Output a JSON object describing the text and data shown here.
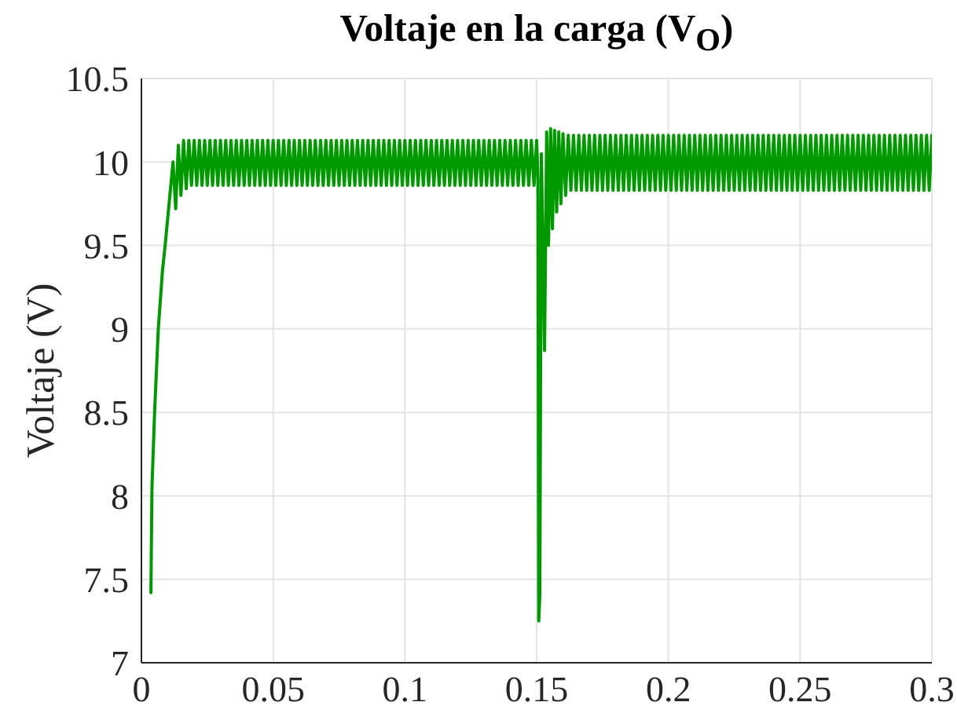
{
  "chart_data": {
    "type": "line",
    "title": "Voltaje en la carga (V$_{O}$)",
    "ylabel": "Voltaje (V)",
    "x": [
      0.0036,
      0.004,
      0.005,
      0.0064,
      0.008,
      0.009,
      0.0105,
      0.012,
      0.013,
      0.014,
      0.015,
      0.016,
      0.017,
      0.018,
      0.019,
      0.02,
      0.021,
      0.022,
      0.023,
      0.024,
      0.025,
      0.026,
      0.027,
      0.028,
      0.029,
      0.03,
      0.031,
      0.032,
      0.033,
      0.034,
      0.035,
      0.036,
      0.037,
      0.038,
      0.039,
      0.04,
      0.041,
      0.042,
      0.043,
      0.044,
      0.045,
      0.046,
      0.047,
      0.048,
      0.049,
      0.05,
      0.051,
      0.052,
      0.053,
      0.054,
      0.055,
      0.056,
      0.057,
      0.058,
      0.059,
      0.06,
      0.061,
      0.062,
      0.063,
      0.064,
      0.065,
      0.066,
      0.067,
      0.068,
      0.069,
      0.07,
      0.071,
      0.072,
      0.073,
      0.074,
      0.075,
      0.076,
      0.077,
      0.078,
      0.079,
      0.08,
      0.081,
      0.082,
      0.083,
      0.084,
      0.085,
      0.086,
      0.087,
      0.088,
      0.089,
      0.09,
      0.091,
      0.092,
      0.093,
      0.094,
      0.095,
      0.096,
      0.097,
      0.098,
      0.099,
      0.1,
      0.101,
      0.102,
      0.103,
      0.104,
      0.105,
      0.106,
      0.107,
      0.108,
      0.109,
      0.11,
      0.111,
      0.112,
      0.113,
      0.114,
      0.115,
      0.116,
      0.117,
      0.118,
      0.119,
      0.12,
      0.121,
      0.122,
      0.123,
      0.124,
      0.125,
      0.126,
      0.127,
      0.128,
      0.129,
      0.13,
      0.131,
      0.132,
      0.133,
      0.134,
      0.135,
      0.136,
      0.137,
      0.138,
      0.139,
      0.14,
      0.141,
      0.142,
      0.143,
      0.144,
      0.145,
      0.146,
      0.147,
      0.148,
      0.149,
      0.15,
      0.1505,
      0.1508,
      0.1512,
      0.1518,
      0.153,
      0.1538,
      0.1545,
      0.1553,
      0.156,
      0.1568,
      0.1576,
      0.1584,
      0.1592,
      0.16,
      0.161,
      0.162,
      0.163,
      0.164,
      0.165,
      0.166,
      0.167,
      0.168,
      0.169,
      0.17,
      0.171,
      0.172,
      0.173,
      0.174,
      0.175,
      0.176,
      0.177,
      0.178,
      0.179,
      0.18,
      0.181,
      0.182,
      0.183,
      0.184,
      0.185,
      0.186,
      0.187,
      0.188,
      0.189,
      0.19,
      0.191,
      0.192,
      0.193,
      0.194,
      0.195,
      0.196,
      0.197,
      0.198,
      0.199,
      0.2,
      0.201,
      0.202,
      0.203,
      0.204,
      0.205,
      0.206,
      0.207,
      0.208,
      0.209,
      0.21,
      0.211,
      0.212,
      0.213,
      0.214,
      0.215,
      0.216,
      0.217,
      0.218,
      0.219,
      0.22,
      0.221,
      0.222,
      0.223,
      0.224,
      0.225,
      0.226,
      0.227,
      0.228,
      0.229,
      0.23,
      0.231,
      0.232,
      0.233,
      0.234,
      0.235,
      0.236,
      0.237,
      0.238,
      0.239,
      0.24,
      0.241,
      0.242,
      0.243,
      0.244,
      0.245,
      0.246,
      0.247,
      0.248,
      0.249,
      0.25,
      0.251,
      0.252,
      0.253,
      0.254,
      0.255,
      0.256,
      0.257,
      0.258,
      0.259,
      0.26,
      0.261,
      0.262,
      0.263,
      0.264,
      0.265,
      0.266,
      0.267,
      0.268,
      0.269,
      0.27,
      0.271,
      0.272,
      0.273,
      0.274,
      0.275,
      0.276,
      0.277,
      0.278,
      0.279,
      0.28,
      0.281,
      0.282,
      0.283,
      0.284,
      0.285,
      0.286,
      0.287,
      0.288,
      0.289,
      0.29,
      0.291,
      0.292,
      0.293,
      0.294,
      0.295,
      0.296,
      0.297,
      0.298,
      0.299,
      0.3
    ],
    "values": [
      7.42,
      8.05,
      8.5,
      9.0,
      9.35,
      9.5,
      9.75,
      10.0,
      9.72,
      10.1,
      9.8,
      10.13,
      9.84,
      10.13,
      9.86,
      10.13,
      9.86,
      10.13,
      9.86,
      10.13,
      9.86,
      10.13,
      9.86,
      10.13,
      9.86,
      10.13,
      9.86,
      10.13,
      9.86,
      10.13,
      9.86,
      10.13,
      9.86,
      10.13,
      9.86,
      10.13,
      9.86,
      10.13,
      9.86,
      10.13,
      9.86,
      10.13,
      9.86,
      10.13,
      9.86,
      10.13,
      9.86,
      10.13,
      9.86,
      10.13,
      9.86,
      10.13,
      9.86,
      10.13,
      9.86,
      10.13,
      9.86,
      10.13,
      9.86,
      10.13,
      9.86,
      10.13,
      9.86,
      10.13,
      9.86,
      10.13,
      9.86,
      10.13,
      9.86,
      10.13,
      9.86,
      10.13,
      9.86,
      10.13,
      9.86,
      10.13,
      9.86,
      10.13,
      9.86,
      10.13,
      9.86,
      10.13,
      9.86,
      10.13,
      9.86,
      10.13,
      9.86,
      10.13,
      9.86,
      10.13,
      9.86,
      10.13,
      9.86,
      10.13,
      9.86,
      10.13,
      9.86,
      10.13,
      9.86,
      10.13,
      9.86,
      10.13,
      9.86,
      10.13,
      9.86,
      10.13,
      9.86,
      10.13,
      9.86,
      10.13,
      9.86,
      10.13,
      9.86,
      10.13,
      9.86,
      10.13,
      9.86,
      10.13,
      9.86,
      10.13,
      9.86,
      10.13,
      9.86,
      10.13,
      9.86,
      10.13,
      9.86,
      10.13,
      9.86,
      10.13,
      9.86,
      10.13,
      9.86,
      10.13,
      9.86,
      10.13,
      9.86,
      10.13,
      9.86,
      10.13,
      9.86,
      10.13,
      9.86,
      10.13,
      9.86,
      10.13,
      9.9,
      7.25,
      7.4,
      10.05,
      8.87,
      10.18,
      9.5,
      10.2,
      9.6,
      10.19,
      9.7,
      10.18,
      9.75,
      10.17,
      9.8,
      10.16,
      9.83,
      10.16,
      9.83,
      10.16,
      9.83,
      10.16,
      9.83,
      10.16,
      9.83,
      10.16,
      9.83,
      10.16,
      9.83,
      10.16,
      9.83,
      10.16,
      9.83,
      10.16,
      9.83,
      10.16,
      9.83,
      10.16,
      9.83,
      10.16,
      9.83,
      10.16,
      9.83,
      10.16,
      9.83,
      10.16,
      9.83,
      10.16,
      9.83,
      10.16,
      9.83,
      10.16,
      9.83,
      10.16,
      9.83,
      10.16,
      9.83,
      10.16,
      9.83,
      10.16,
      9.83,
      10.16,
      9.83,
      10.16,
      9.83,
      10.16,
      9.83,
      10.16,
      9.83,
      10.16,
      9.83,
      10.16,
      9.83,
      10.16,
      9.83,
      10.16,
      9.83,
      10.16,
      9.83,
      10.16,
      9.83,
      10.16,
      9.83,
      10.16,
      9.83,
      10.16,
      9.83,
      10.16,
      9.83,
      10.16,
      9.83,
      10.16,
      9.83,
      10.16,
      9.83,
      10.16,
      9.83,
      10.16,
      9.83,
      10.16,
      9.83,
      10.16,
      9.83,
      10.16,
      9.83,
      10.16,
      9.83,
      10.16,
      9.83,
      10.16,
      9.83,
      10.16,
      9.83,
      10.16,
      9.83,
      10.16,
      9.83,
      10.16,
      9.83,
      10.16,
      9.83,
      10.16,
      9.83,
      10.16,
      9.83,
      10.16,
      9.83,
      10.16,
      9.83,
      10.16,
      9.83,
      10.16,
      9.83,
      10.16,
      9.83,
      10.16,
      9.83,
      10.16,
      9.83,
      10.16,
      9.83,
      10.16,
      9.83,
      10.16,
      9.83,
      10.16,
      9.83,
      10.16,
      9.83,
      10.16,
      9.83,
      10.16,
      9.83,
      10.16
    ],
    "color": "#009900",
    "line_style": "solid",
    "xlim": [
      0,
      0.3
    ],
    "xticks": [
      0,
      0.05,
      0.1,
      0.15,
      0.2,
      0.25,
      0.3
    ],
    "ylim": [
      7,
      10.5
    ],
    "yticks": [
      7,
      7.5,
      8,
      8.5,
      9,
      9.5,
      10,
      10.5
    ],
    "grid": true
  }
}
